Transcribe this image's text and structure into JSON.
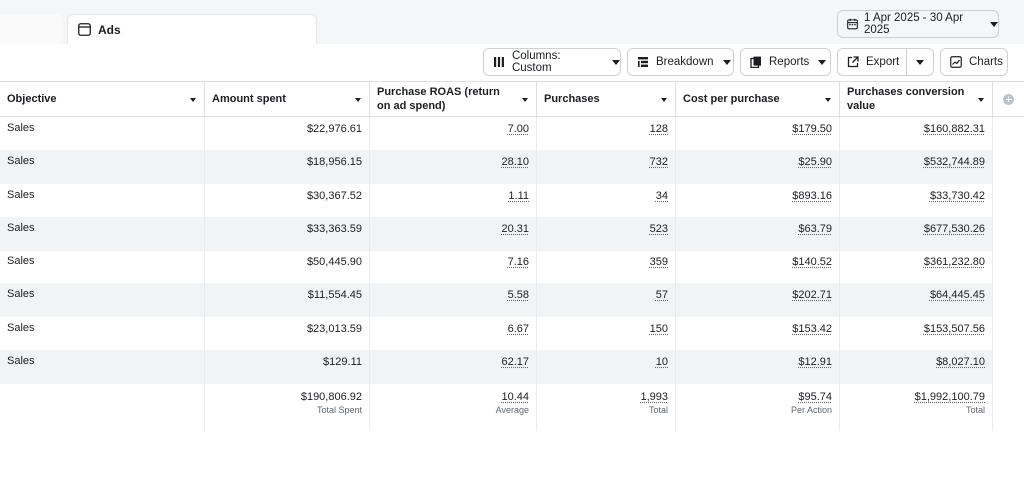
{
  "tabs": {
    "ads_label": "Ads"
  },
  "date_range": {
    "label": "1 Apr 2025 - 30 Apr 2025"
  },
  "toolbar": {
    "columns_label": "Columns: Custom",
    "breakdown_label": "Breakdown",
    "reports_label": "Reports",
    "export_label": "Export",
    "charts_label": "Charts"
  },
  "table": {
    "headers": {
      "objective": "Objective",
      "amount_spent": "Amount spent",
      "roas": "Purchase ROAS (return on ad spend)",
      "purchases": "Purchases",
      "cost_per_purchase": "Cost per purchase",
      "conversion_value": "Purchases conversion value"
    },
    "rows": [
      {
        "objective": "Sales",
        "amount_spent": "$22,976.61",
        "roas": "7.00",
        "purchases": "128",
        "cost": "$179.50",
        "value": "$160,882.31"
      },
      {
        "objective": "Sales",
        "amount_spent": "$18,956.15",
        "roas": "28.10",
        "purchases": "732",
        "cost": "$25.90",
        "value": "$532,744.89"
      },
      {
        "objective": "Sales",
        "amount_spent": "$30,367.52",
        "roas": "1.11",
        "purchases": "34",
        "cost": "$893.16",
        "value": "$33,730.42"
      },
      {
        "objective": "Sales",
        "amount_spent": "$33,363.59",
        "roas": "20.31",
        "purchases": "523",
        "cost": "$63.79",
        "value": "$677,530.26"
      },
      {
        "objective": "Sales",
        "amount_spent": "$50,445.90",
        "roas": "7.16",
        "purchases": "359",
        "cost": "$140.52",
        "value": "$361,232.80"
      },
      {
        "objective": "Sales",
        "amount_spent": "$11,554.45",
        "roas": "5.58",
        "purchases": "57",
        "cost": "$202.71",
        "value": "$64,445.45"
      },
      {
        "objective": "Sales",
        "amount_spent": "$23,013.59",
        "roas": "6.67",
        "purchases": "150",
        "cost": "$153.42",
        "value": "$153,507.56"
      },
      {
        "objective": "Sales",
        "amount_spent": "$129.11",
        "roas": "62.17",
        "purchases": "10",
        "cost": "$12.91",
        "value": "$8,027.10"
      }
    ],
    "totals": {
      "amount_spent": {
        "value": "$190,806.92",
        "label": "Total Spent"
      },
      "roas": {
        "value": "10.44",
        "label": "Average"
      },
      "purchases": {
        "value": "1,993",
        "label": "Total"
      },
      "cost": {
        "value": "$95.74",
        "label": "Per Action"
      },
      "value": {
        "value": "$1,992,100.79",
        "label": "Total"
      }
    }
  },
  "icons": {
    "tab": "ads-panel-icon",
    "date": "calendar-icon",
    "columns": "columns-icon",
    "breakdown": "breakdown-icon",
    "reports": "reports-icon",
    "export": "export-icon",
    "charts": "chart-icon",
    "add_column": "add-column-icon"
  }
}
